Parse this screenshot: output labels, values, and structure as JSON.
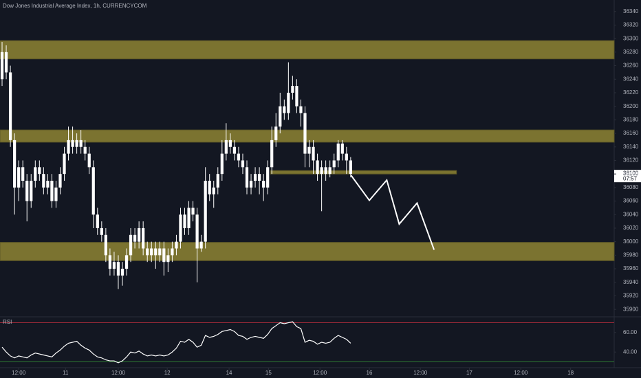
{
  "chart_data": {
    "type": "candlestick",
    "title": "Dow Jones Industrial Average Index, 1h, CURRENCYCOM",
    "color": "#ffffff",
    "open": [
      36240,
      36280,
      36250,
      36150,
      36080,
      36110,
      36090,
      36060,
      36090,
      36110,
      36100,
      36080,
      36090,
      36060,
      36080,
      36100,
      36130,
      36150,
      36140,
      36150,
      36140,
      36130,
      36110,
      36040,
      36020,
      36010,
      35980,
      35960,
      35970,
      35950,
      35960,
      35980,
      36010,
      36000,
      36020,
      35990,
      35980,
      35990,
      35980,
      35990,
      35970,
      35980,
      35990,
      36000,
      36040,
      36020,
      36050,
      36040,
      35990,
      36000,
      36090,
      36070,
      36080,
      36100,
      36130,
      36150,
      36140,
      36130,
      36120,
      36110,
      36080,
      36090,
      36100,
      36090,
      36080,
      36110,
      36150,
      36170,
      36200,
      36190,
      36220,
      36230,
      36200,
      36190,
      36130,
      36140,
      36120,
      36100,
      36110,
      36100,
      36110,
      36120,
      36145,
      36130,
      36120
    ],
    "high": [
      36295,
      36290,
      36260,
      36160,
      36120,
      36120,
      36100,
      36100,
      36120,
      36120,
      36110,
      36100,
      36100,
      36090,
      36110,
      36140,
      36170,
      36170,
      36160,
      36165,
      36150,
      36140,
      36120,
      36050,
      36030,
      36020,
      35990,
      35985,
      35980,
      35970,
      35990,
      36020,
      36020,
      36030,
      36030,
      36000,
      36000,
      36000,
      36000,
      36000,
      35990,
      36000,
      36010,
      36050,
      36050,
      36060,
      36060,
      36050,
      36010,
      36110,
      36100,
      36090,
      36110,
      36150,
      36175,
      36160,
      36150,
      36140,
      36130,
      36120,
      36100,
      36110,
      36110,
      36100,
      36120,
      36170,
      36190,
      36220,
      36210,
      36265,
      36245,
      36240,
      36210,
      36200,
      36150,
      36150,
      36130,
      36120,
      36120,
      36120,
      36130,
      36150,
      36150,
      36140,
      36125
    ],
    "low": [
      36230,
      36240,
      36140,
      36040,
      36060,
      36080,
      36030,
      36050,
      36080,
      36090,
      36070,
      36070,
      36050,
      36050,
      36070,
      36090,
      36120,
      36130,
      36130,
      36130,
      36120,
      36100,
      36020,
      36010,
      36000,
      35970,
      35950,
      35950,
      35930,
      35935,
      35950,
      35970,
      35990,
      35990,
      35980,
      35970,
      35970,
      35960,
      35970,
      35950,
      35955,
      35970,
      35980,
      35990,
      36010,
      36010,
      36030,
      35940,
      35985,
      35990,
      36060,
      36050,
      36070,
      36090,
      36120,
      36130,
      36120,
      36110,
      36100,
      36070,
      36070,
      36080,
      36070,
      36060,
      36070,
      36100,
      36140,
      36160,
      36180,
      36180,
      36210,
      36190,
      36170,
      36110,
      36110,
      36100,
      36090,
      36045,
      36090,
      36095,
      36100,
      36110,
      36120,
      36100,
      36095
    ],
    "close": [
      36280,
      36250,
      36150,
      36080,
      36110,
      36090,
      36060,
      36090,
      36110,
      36100,
      36080,
      36090,
      36060,
      36080,
      36100,
      36130,
      36150,
      36140,
      36150,
      36140,
      36130,
      36110,
      36040,
      36020,
      36010,
      35980,
      35960,
      35970,
      35950,
      35960,
      35980,
      36010,
      36000,
      36020,
      35990,
      35980,
      35990,
      35980,
      35990,
      35970,
      35980,
      35990,
      36000,
      36040,
      36020,
      36050,
      36040,
      35990,
      36000,
      36090,
      36070,
      36080,
      36100,
      36130,
      36150,
      36140,
      36130,
      36120,
      36110,
      36080,
      36090,
      36100,
      36090,
      36080,
      36110,
      36150,
      36170,
      36200,
      36190,
      36220,
      36230,
      36200,
      36190,
      36130,
      36140,
      36120,
      36100,
      36110,
      36100,
      36110,
      36120,
      36145,
      36130,
      36120,
      36100
    ],
    "xlim": [
      -0.5,
      147.5
    ],
    "xticks": [
      {
        "value": 4,
        "label": "12:00"
      },
      {
        "value": 15.3,
        "label": "11"
      },
      {
        "value": 28,
        "label": "12:00"
      },
      {
        "value": 39.8,
        "label": "12"
      },
      {
        "value": 54.7,
        "label": "14"
      },
      {
        "value": 64.2,
        "label": "15"
      },
      {
        "value": 76.6,
        "label": "12:00"
      },
      {
        "value": 88.5,
        "label": "16"
      },
      {
        "value": 100.8,
        "label": "12:00"
      },
      {
        "value": 112.6,
        "label": "17"
      },
      {
        "value": 125,
        "label": "12:00"
      },
      {
        "value": 137,
        "label": "18"
      }
    ],
    "ylim": [
      35890,
      36357
    ],
    "yticks": [
      35900,
      35920,
      35940,
      35960,
      35980,
      36000,
      36020,
      36040,
      36060,
      36080,
      36100,
      36120,
      36140,
      36160,
      36180,
      36200,
      36220,
      36240,
      36260,
      36280,
      36300,
      36320,
      36340
    ],
    "zones": [
      {
        "low": 36270,
        "high": 36297,
        "color": "#7b7330"
      },
      {
        "low": 36147,
        "high": 36165,
        "color": "#7b7330"
      },
      {
        "low": 36100,
        "high": 36105,
        "x": [
          64.7,
          109.5
        ],
        "color": "#7b7330"
      },
      {
        "low": 35972,
        "high": 35999,
        "color": "#7b7330"
      }
    ],
    "projection": {
      "x": [
        84.1,
        88.5,
        92.7,
        95.7,
        100,
        104.1
      ],
      "values": [
        36098,
        36061,
        36091,
        36026,
        36057,
        35988
      ],
      "color": "#ffffff"
    },
    "current_price": 36100,
    "countdown": "07:57",
    "rsi": {
      "label": "RSI",
      "color": "#ffffff",
      "ylim": [
        24,
        76
      ],
      "values": [
        45,
        40,
        36,
        34,
        36,
        35,
        34,
        37,
        39,
        38,
        37,
        36,
        35,
        39,
        42,
        46,
        49,
        50,
        51,
        47,
        44,
        42,
        38,
        35,
        34,
        32,
        31,
        31,
        29,
        31,
        35,
        40,
        39,
        41,
        38,
        36,
        37,
        36,
        37,
        36,
        37,
        40,
        44,
        51,
        50,
        53,
        50,
        45,
        47,
        57,
        55,
        56,
        58,
        61,
        62,
        63,
        61,
        57,
        56,
        53,
        55,
        56,
        55,
        54,
        58,
        64,
        67,
        70,
        69,
        70,
        71,
        66,
        64,
        50,
        52,
        51,
        48,
        50,
        49,
        50,
        54,
        57,
        55,
        53,
        49
      ],
      "yticks": [
        {
          "value": 40,
          "label": "40.00"
        },
        {
          "value": 60,
          "label": "60.00"
        }
      ],
      "upper": 70,
      "lower": 30,
      "upper_color": "#9c2a38",
      "lower_color": "#2e7d32"
    }
  }
}
